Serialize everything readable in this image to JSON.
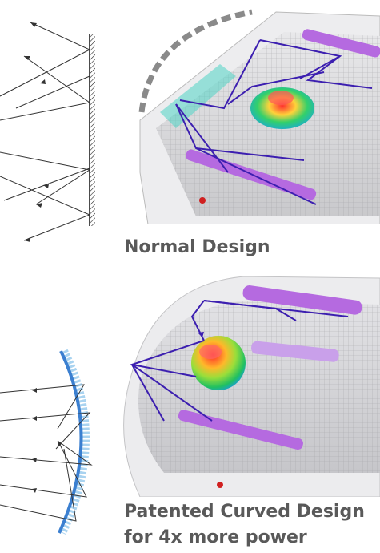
{
  "captions": {
    "normal": "Normal Design",
    "curved_line1": "Patented Curved Design",
    "curved_line2": "for 4x more power"
  },
  "colors": {
    "caption_text": "#595959",
    "ray_purple": "#3c1fb0",
    "uv_lamp": "#b56ae0",
    "curved_mirror": "#3b7fd0"
  },
  "icons": {
    "flat_mirror": "hatched-line-mirror",
    "curved_mirror": "hatched-arc-mirror"
  }
}
